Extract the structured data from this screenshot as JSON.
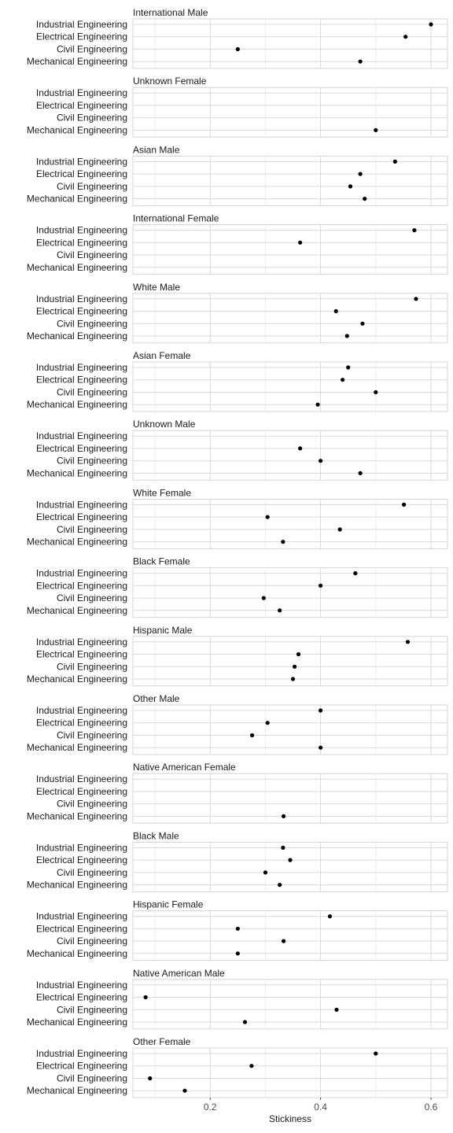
{
  "chart_data": {
    "type": "scatter",
    "xlabel": "Stickiness",
    "xlim": [
      0.06,
      0.63
    ],
    "x_ticks": [
      0.2,
      0.4,
      0.6
    ],
    "x_tick_labels": [
      "0.2",
      "0.4",
      "0.6"
    ],
    "categories": [
      "Industrial Engineering",
      "Electrical Engineering",
      "Civil Engineering",
      "Mechanical Engineering"
    ],
    "panels": [
      {
        "title": "International Male",
        "values": [
          0.6,
          0.554,
          0.25,
          0.472
        ]
      },
      {
        "title": "Unknown Female",
        "values": [
          null,
          null,
          null,
          0.5
        ]
      },
      {
        "title": "Asian Male",
        "values": [
          0.535,
          0.472,
          0.454,
          0.48
        ]
      },
      {
        "title": "International Female",
        "values": [
          0.57,
          0.363,
          null,
          null
        ]
      },
      {
        "title": "White Male",
        "values": [
          0.573,
          0.428,
          0.476,
          0.448
        ]
      },
      {
        "title": "Asian Female",
        "values": [
          0.45,
          0.44,
          0.5,
          0.395
        ]
      },
      {
        "title": "Unknown Male",
        "values": [
          null,
          0.363,
          0.4,
          0.472
        ]
      },
      {
        "title": "White Female",
        "values": [
          0.551,
          0.304,
          0.435,
          0.332
        ]
      },
      {
        "title": "Black Female",
        "values": [
          0.463,
          0.4,
          0.297,
          0.326
        ]
      },
      {
        "title": "Hispanic Male",
        "values": [
          0.558,
          0.36,
          0.353,
          0.35
        ]
      },
      {
        "title": "Other Male",
        "values": [
          0.4,
          0.304,
          0.276,
          0.4
        ]
      },
      {
        "title": "Native American Female",
        "values": [
          null,
          null,
          null,
          0.333
        ]
      },
      {
        "title": "Black Male",
        "values": [
          0.332,
          0.345,
          0.3,
          0.326
        ]
      },
      {
        "title": "Hispanic Female",
        "values": [
          0.417,
          0.25,
          0.333,
          0.25
        ]
      },
      {
        "title": "Native American Male",
        "values": [
          null,
          0.083,
          0.429,
          0.263
        ]
      },
      {
        "title": "Other Female",
        "values": [
          0.5,
          0.275,
          0.091,
          0.154
        ]
      }
    ]
  }
}
